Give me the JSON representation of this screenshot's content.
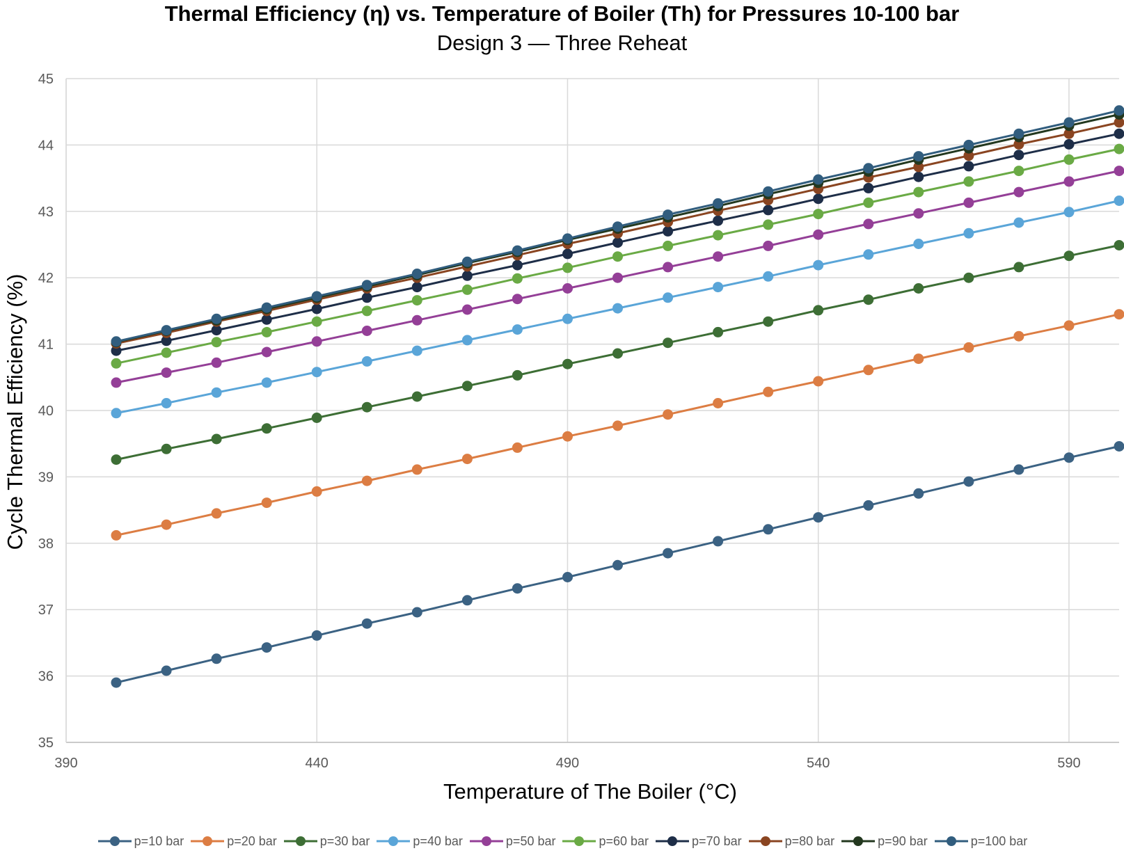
{
  "chart_data": {
    "type": "line",
    "title": "Thermal Efficiency (η) vs. Temperature of Boiler (Th) for Pressures 10-100 bar",
    "subtitle": "Design 3 — Three Reheat",
    "xlabel": "Temperature of The Boiler (°C)",
    "ylabel": "Cycle Thermal Efficiency (%)",
    "xlim": [
      390,
      600
    ],
    "ylim": [
      35,
      45
    ],
    "xticks": [
      390,
      440,
      490,
      540,
      590
    ],
    "yticks": [
      35,
      36,
      37,
      38,
      39,
      40,
      41,
      42,
      43,
      44,
      45
    ],
    "grid": true,
    "legend_position": "bottom",
    "x": [
      400,
      410,
      420,
      430,
      440,
      450,
      460,
      470,
      480,
      490,
      500,
      510,
      520,
      530,
      540,
      550,
      560,
      570,
      580,
      590,
      600
    ],
    "series": [
      {
        "name": "p=10 bar",
        "color": "#3b6283",
        "values": [
          35.9,
          36.08,
          36.26,
          36.43,
          36.61,
          36.79,
          36.96,
          37.14,
          37.32,
          37.49,
          37.67,
          37.85,
          38.03,
          38.21,
          38.39,
          38.57,
          38.75,
          38.93,
          39.11,
          39.29,
          39.46
        ]
      },
      {
        "name": "p=20 bar",
        "color": "#dc7d43",
        "values": [
          38.12,
          38.28,
          38.45,
          38.61,
          38.78,
          38.94,
          39.11,
          39.27,
          39.44,
          39.61,
          39.77,
          39.94,
          40.11,
          40.28,
          40.44,
          40.61,
          40.78,
          40.95,
          41.12,
          41.28,
          41.45
        ]
      },
      {
        "name": "p=30 bar",
        "color": "#3d6e35",
        "values": [
          39.26,
          39.42,
          39.57,
          39.73,
          39.89,
          40.05,
          40.21,
          40.37,
          40.53,
          40.7,
          40.86,
          41.02,
          41.18,
          41.34,
          41.51,
          41.67,
          41.84,
          42.0,
          42.16,
          42.33,
          42.49
        ]
      },
      {
        "name": "p=40  bar",
        "color": "#5aa5d8",
        "values": [
          39.96,
          40.11,
          40.27,
          40.42,
          40.58,
          40.74,
          40.9,
          41.06,
          41.22,
          41.38,
          41.54,
          41.7,
          41.86,
          42.02,
          42.19,
          42.35,
          42.51,
          42.67,
          42.83,
          42.99,
          43.16
        ]
      },
      {
        "name": "p=50 bar",
        "color": "#943f97",
        "values": [
          40.42,
          40.57,
          40.72,
          40.88,
          41.04,
          41.2,
          41.36,
          41.52,
          41.68,
          41.84,
          42.0,
          42.16,
          42.32,
          42.48,
          42.65,
          42.81,
          42.97,
          43.13,
          43.29,
          43.45,
          43.61
        ]
      },
      {
        "name": "p=60 bar",
        "color": "#6aaa45",
        "values": [
          40.71,
          40.87,
          41.03,
          41.18,
          41.34,
          41.5,
          41.66,
          41.82,
          41.99,
          42.15,
          42.32,
          42.48,
          42.64,
          42.8,
          42.96,
          43.13,
          43.29,
          43.45,
          43.61,
          43.78,
          43.94
        ]
      },
      {
        "name": "p=70 bar",
        "color": "#1e2e48",
        "values": [
          40.9,
          41.05,
          41.21,
          41.37,
          41.53,
          41.7,
          41.86,
          42.03,
          42.19,
          42.36,
          42.53,
          42.7,
          42.86,
          43.02,
          43.19,
          43.35,
          43.52,
          43.68,
          43.85,
          44.01,
          44.17
        ]
      },
      {
        "name": "p=80 bar",
        "color": "#8a4521",
        "values": [
          41.01,
          41.17,
          41.34,
          41.5,
          41.67,
          41.84,
          42.0,
          42.17,
          42.34,
          42.51,
          42.67,
          42.84,
          43.01,
          43.17,
          43.34,
          43.51,
          43.67,
          43.84,
          44.01,
          44.17,
          44.34
        ]
      },
      {
        "name": "p=90 bar",
        "color": "#23381f",
        "values": [
          41.03,
          41.2,
          41.36,
          41.53,
          41.7,
          41.87,
          42.04,
          42.22,
          42.39,
          42.57,
          42.74,
          42.91,
          43.08,
          43.26,
          43.43,
          43.6,
          43.78,
          43.95,
          44.12,
          44.29,
          44.46
        ]
      },
      {
        "name": "p=100 bar",
        "color": "#315d7e",
        "values": [
          41.04,
          41.21,
          41.38,
          41.55,
          41.72,
          41.89,
          42.06,
          42.24,
          42.41,
          42.59,
          42.77,
          42.95,
          43.12,
          43.3,
          43.48,
          43.65,
          43.83,
          44.0,
          44.17,
          44.34,
          44.52
        ]
      }
    ]
  }
}
